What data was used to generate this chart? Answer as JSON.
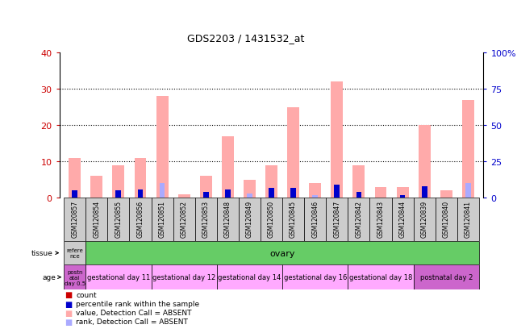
{
  "title": "GDS2203 / 1431532_at",
  "samples": [
    "GSM120857",
    "GSM120854",
    "GSM120855",
    "GSM120856",
    "GSM120851",
    "GSM120852",
    "GSM120853",
    "GSM120848",
    "GSM120849",
    "GSM120850",
    "GSM120845",
    "GSM120846",
    "GSM120847",
    "GSM120842",
    "GSM120843",
    "GSM120844",
    "GSM120839",
    "GSM120840",
    "GSM120841"
  ],
  "count_values": [
    0,
    0,
    0,
    0,
    0,
    0,
    0,
    0,
    0,
    0,
    0,
    0,
    0,
    0,
    0,
    0,
    0,
    0,
    0
  ],
  "rank_values": [
    5,
    0,
    5,
    6,
    0,
    0,
    4,
    6,
    0,
    7,
    7,
    0,
    9,
    4,
    0,
    2,
    8,
    0,
    0
  ],
  "absent_value": [
    11,
    6,
    9,
    11,
    28,
    1,
    6,
    17,
    5,
    9,
    25,
    4,
    32,
    9,
    3,
    3,
    20,
    2,
    27
  ],
  "absent_rank": [
    0,
    0,
    0,
    0,
    10,
    0,
    0,
    0,
    3,
    0,
    0,
    2,
    0,
    0,
    0,
    2,
    0,
    0,
    10
  ],
  "ylim_left": [
    0,
    40
  ],
  "ylim_right": [
    0,
    100
  ],
  "yticks_left": [
    0,
    10,
    20,
    30,
    40
  ],
  "yticks_right": [
    0,
    25,
    50,
    75,
    100
  ],
  "color_count": "#cc0000",
  "color_rank": "#0000cc",
  "color_absent_value": "#ffaaaa",
  "color_absent_rank": "#aaaaff",
  "tissue_ref_color": "#cccccc",
  "tissue_ovary_color": "#66cc66",
  "age_postnatal_color": "#cc66cc",
  "age_gestational_color": "#ffaaff",
  "bg_color": "#ffffff",
  "axis_color_left": "#cc0000",
  "axis_color_right": "#0000cc"
}
